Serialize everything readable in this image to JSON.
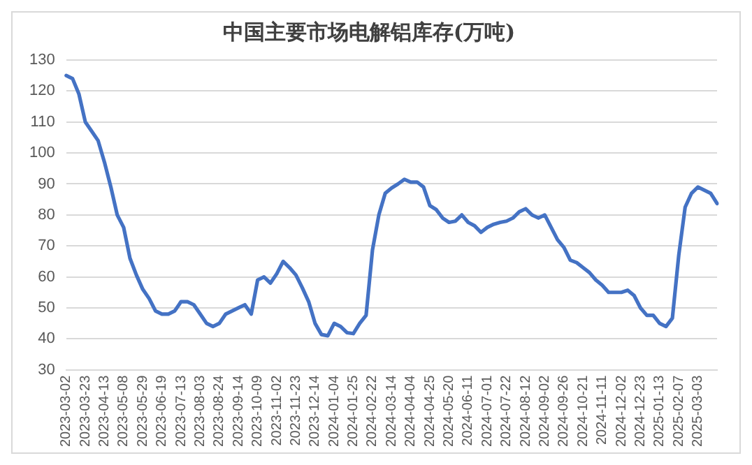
{
  "chart_data": {
    "type": "line",
    "title": "中国主要市场电解铝库存(万吨)",
    "categories": [
      "2023-03-02",
      null,
      null,
      "2023-03-23",
      null,
      null,
      "2023-04-13",
      null,
      null,
      "2023-05-08",
      null,
      null,
      "2023-05-29",
      null,
      null,
      "2023-06-19",
      null,
      null,
      "2023-07-13",
      null,
      null,
      "2023-08-03",
      null,
      null,
      "2023-08-24",
      null,
      null,
      "2023-09-14",
      null,
      null,
      "2023-10-09",
      null,
      null,
      "2023-11-02",
      null,
      null,
      "2023-11-23",
      null,
      null,
      "2023-12-14",
      null,
      null,
      "2024-01-04",
      null,
      null,
      "2024-01-25",
      null,
      null,
      "2024-02-22",
      null,
      null,
      "2024-03-14",
      null,
      null,
      "2024-04-04",
      null,
      null,
      "2024-04-25",
      null,
      null,
      "2024-05-20",
      null,
      null,
      "2024-06-11",
      null,
      null,
      "2024-07-01",
      null,
      null,
      "2024-07-22",
      null,
      null,
      "2024-08-12",
      null,
      null,
      "2024-09-02",
      null,
      null,
      "2024-09-26",
      null,
      null,
      "2024-10-21",
      null,
      null,
      "2024-11-11",
      null,
      null,
      "2024-12-02",
      null,
      null,
      "2024-12-23",
      null,
      null,
      "2025-01-13",
      null,
      null,
      "2025-02-07",
      null,
      null,
      "2025-03-03",
      null,
      null,
      null
    ],
    "series": [
      {
        "color": "#4472c4",
        "values": [
          125,
          124,
          119,
          110,
          107,
          104,
          97,
          89,
          80,
          76,
          66,
          60.6,
          56,
          53,
          49,
          48,
          48,
          49,
          52,
          52,
          51,
          48,
          45,
          44,
          45,
          48,
          49,
          50,
          51,
          48,
          59,
          60,
          58,
          61,
          65,
          63,
          60.6,
          56.5,
          52,
          45,
          41.4,
          41,
          45,
          44,
          42,
          41.7,
          45,
          47.6,
          68.7,
          80,
          87,
          88.7,
          90,
          91.5,
          90.6,
          90.6,
          89,
          83,
          81.7,
          79,
          77.6,
          78,
          80,
          77.6,
          76.5,
          74.4,
          76,
          77,
          77.6,
          78,
          79,
          81,
          82,
          80,
          79,
          80,
          76,
          72,
          69.5,
          65.4,
          64.6,
          63,
          61.4,
          59,
          57.3,
          55,
          55,
          55,
          55.7,
          54,
          50,
          47.6,
          47.6,
          45,
          44,
          46.7,
          67,
          82.5,
          87,
          89,
          88,
          87,
          83.7
        ]
      }
    ],
    "ylim": [
      30,
      130
    ],
    "yticks": [
      30,
      40,
      50,
      60,
      70,
      80,
      90,
      100,
      110,
      120,
      130
    ],
    "grid": "y",
    "legend": false,
    "marker": "none",
    "line_style": "solid"
  }
}
